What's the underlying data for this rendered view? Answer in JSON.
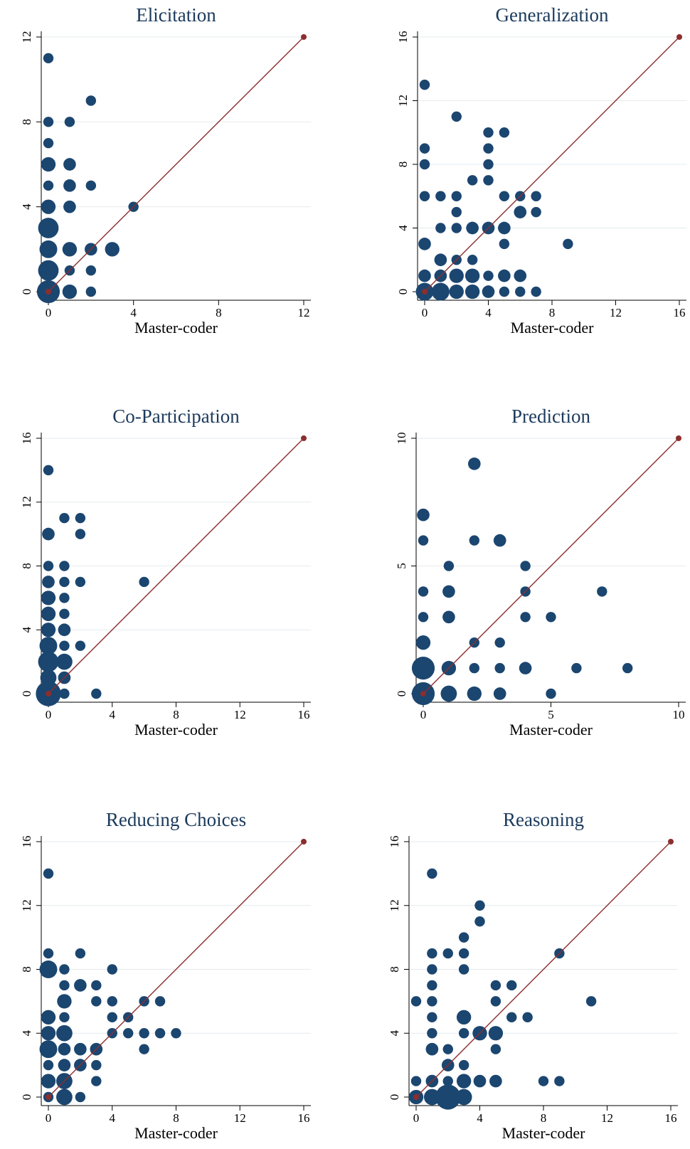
{
  "chart_data": [
    {
      "type": "scatter",
      "title": "Elicitation",
      "xlabel": "Master-coder",
      "ylabel": "",
      "xlim": [
        0,
        12
      ],
      "ylim": [
        0,
        12
      ],
      "xticks": [
        0,
        4,
        8,
        12
      ],
      "yticks": [
        0,
        4,
        8,
        12
      ],
      "grid": "horizontal",
      "reference_line": [
        [
          0,
          0
        ],
        [
          12,
          12
        ]
      ],
      "points": [
        {
          "x": 0,
          "y": 0,
          "w": 5
        },
        {
          "x": 0,
          "y": 1,
          "w": 4
        },
        {
          "x": 0,
          "y": 2,
          "w": 3
        },
        {
          "x": 0,
          "y": 3,
          "w": 4
        },
        {
          "x": 0,
          "y": 4,
          "w": 2
        },
        {
          "x": 0,
          "y": 5,
          "w": 1
        },
        {
          "x": 0,
          "y": 6,
          "w": 2
        },
        {
          "x": 0,
          "y": 7,
          "w": 1
        },
        {
          "x": 0,
          "y": 8,
          "w": 1
        },
        {
          "x": 0,
          "y": 11,
          "w": 1
        },
        {
          "x": 1,
          "y": 0,
          "w": 2
        },
        {
          "x": 1,
          "y": 1,
          "w": 1
        },
        {
          "x": 1,
          "y": 2,
          "w": 2
        },
        {
          "x": 1,
          "y": 4,
          "w": 1.5
        },
        {
          "x": 1,
          "y": 5,
          "w": 1.5
        },
        {
          "x": 1,
          "y": 6,
          "w": 1.5
        },
        {
          "x": 1,
          "y": 8,
          "w": 1
        },
        {
          "x": 2,
          "y": 0,
          "w": 1
        },
        {
          "x": 2,
          "y": 1,
          "w": 1
        },
        {
          "x": 2,
          "y": 2,
          "w": 1.5
        },
        {
          "x": 2,
          "y": 5,
          "w": 1
        },
        {
          "x": 2,
          "y": 9,
          "w": 1
        },
        {
          "x": 3,
          "y": 2,
          "w": 2
        },
        {
          "x": 4,
          "y": 4,
          "w": 1
        }
      ]
    },
    {
      "type": "scatter",
      "title": "Generalization",
      "xlabel": "Master-coder",
      "ylabel": "",
      "xlim": [
        0,
        16
      ],
      "ylim": [
        0,
        16
      ],
      "xticks": [
        0,
        4,
        8,
        12,
        16
      ],
      "yticks": [
        0,
        4,
        8,
        12,
        16
      ],
      "grid": "horizontal",
      "reference_line": [
        [
          0,
          0
        ],
        [
          16,
          16
        ]
      ],
      "points": [
        {
          "x": 0,
          "y": 0,
          "w": 3
        },
        {
          "x": 0,
          "y": 1,
          "w": 1.5
        },
        {
          "x": 0,
          "y": 3,
          "w": 1.5
        },
        {
          "x": 0,
          "y": 6,
          "w": 1
        },
        {
          "x": 0,
          "y": 8,
          "w": 1
        },
        {
          "x": 0,
          "y": 9,
          "w": 1
        },
        {
          "x": 0,
          "y": 13,
          "w": 1
        },
        {
          "x": 1,
          "y": 0,
          "w": 3
        },
        {
          "x": 1,
          "y": 1,
          "w": 1.5
        },
        {
          "x": 1,
          "y": 2,
          "w": 1.5
        },
        {
          "x": 1,
          "y": 4,
          "w": 1
        },
        {
          "x": 1,
          "y": 6,
          "w": 1
        },
        {
          "x": 2,
          "y": 0,
          "w": 2
        },
        {
          "x": 2,
          "y": 1,
          "w": 2
        },
        {
          "x": 2,
          "y": 2,
          "w": 1
        },
        {
          "x": 2,
          "y": 4,
          "w": 1
        },
        {
          "x": 2,
          "y": 5,
          "w": 1
        },
        {
          "x": 2,
          "y": 6,
          "w": 1
        },
        {
          "x": 2,
          "y": 11,
          "w": 1
        },
        {
          "x": 3,
          "y": 0,
          "w": 2
        },
        {
          "x": 3,
          "y": 1,
          "w": 2
        },
        {
          "x": 3,
          "y": 2,
          "w": 1
        },
        {
          "x": 3,
          "y": 4,
          "w": 1.5
        },
        {
          "x": 3,
          "y": 7,
          "w": 1
        },
        {
          "x": 4,
          "y": 0,
          "w": 1.5
        },
        {
          "x": 4,
          "y": 1,
          "w": 1
        },
        {
          "x": 4,
          "y": 4,
          "w": 1.5
        },
        {
          "x": 4,
          "y": 7,
          "w": 1
        },
        {
          "x": 4,
          "y": 8,
          "w": 1
        },
        {
          "x": 4,
          "y": 9,
          "w": 1
        },
        {
          "x": 4,
          "y": 10,
          "w": 1
        },
        {
          "x": 5,
          "y": 0,
          "w": 1
        },
        {
          "x": 5,
          "y": 1,
          "w": 1.5
        },
        {
          "x": 5,
          "y": 3,
          "w": 1
        },
        {
          "x": 5,
          "y": 4,
          "w": 1.5
        },
        {
          "x": 5,
          "y": 6,
          "w": 1
        },
        {
          "x": 5,
          "y": 10,
          "w": 1
        },
        {
          "x": 6,
          "y": 0,
          "w": 1
        },
        {
          "x": 6,
          "y": 1,
          "w": 1.5
        },
        {
          "x": 6,
          "y": 5,
          "w": 1.5
        },
        {
          "x": 6,
          "y": 6,
          "w": 1
        },
        {
          "x": 7,
          "y": 0,
          "w": 1
        },
        {
          "x": 7,
          "y": 5,
          "w": 1
        },
        {
          "x": 7,
          "y": 6,
          "w": 1
        },
        {
          "x": 9,
          "y": 3,
          "w": 1
        }
      ]
    },
    {
      "type": "scatter",
      "title": "Co-Participation",
      "xlabel": "Master-coder",
      "ylabel": "",
      "xlim": [
        0,
        16
      ],
      "ylim": [
        0,
        16
      ],
      "xticks": [
        0,
        4,
        8,
        12,
        16
      ],
      "yticks": [
        0,
        4,
        8,
        12,
        16
      ],
      "grid": "horizontal",
      "reference_line": [
        [
          0,
          0
        ],
        [
          16,
          16
        ]
      ],
      "points": [
        {
          "x": 0,
          "y": 0,
          "w": 6
        },
        {
          "x": 0,
          "y": 1,
          "w": 2.5
        },
        {
          "x": 0,
          "y": 2,
          "w": 4
        },
        {
          "x": 0,
          "y": 3,
          "w": 3
        },
        {
          "x": 0,
          "y": 4,
          "w": 2
        },
        {
          "x": 0,
          "y": 5,
          "w": 2
        },
        {
          "x": 0,
          "y": 6,
          "w": 2
        },
        {
          "x": 0,
          "y": 7,
          "w": 1.5
        },
        {
          "x": 0,
          "y": 8,
          "w": 1
        },
        {
          "x": 0,
          "y": 10,
          "w": 1.5
        },
        {
          "x": 0,
          "y": 14,
          "w": 1
        },
        {
          "x": 1,
          "y": 0,
          "w": 1
        },
        {
          "x": 1,
          "y": 1,
          "w": 1.5
        },
        {
          "x": 1,
          "y": 2,
          "w": 2.5
        },
        {
          "x": 1,
          "y": 3,
          "w": 1
        },
        {
          "x": 1,
          "y": 4,
          "w": 1.5
        },
        {
          "x": 1,
          "y": 5,
          "w": 1
        },
        {
          "x": 1,
          "y": 6,
          "w": 1
        },
        {
          "x": 1,
          "y": 7,
          "w": 1
        },
        {
          "x": 1,
          "y": 8,
          "w": 1
        },
        {
          "x": 1,
          "y": 11,
          "w": 1
        },
        {
          "x": 2,
          "y": 3,
          "w": 1
        },
        {
          "x": 2,
          "y": 7,
          "w": 1
        },
        {
          "x": 2,
          "y": 10,
          "w": 1
        },
        {
          "x": 2,
          "y": 11,
          "w": 1
        },
        {
          "x": 3,
          "y": 0,
          "w": 1
        },
        {
          "x": 6,
          "y": 7,
          "w": 1
        }
      ]
    },
    {
      "type": "scatter",
      "title": "Prediction",
      "xlabel": "Master-coder",
      "ylabel": "",
      "xlim": [
        0,
        10
      ],
      "ylim": [
        0,
        10
      ],
      "xticks": [
        0,
        5,
        10
      ],
      "yticks": [
        0,
        5,
        10
      ],
      "grid": "horizontal",
      "reference_line": [
        [
          0,
          0
        ],
        [
          10,
          10
        ]
      ],
      "points": [
        {
          "x": 0,
          "y": 0,
          "w": 5
        },
        {
          "x": 0,
          "y": 1,
          "w": 5
        },
        {
          "x": 0,
          "y": 2,
          "w": 2
        },
        {
          "x": 0,
          "y": 3,
          "w": 1
        },
        {
          "x": 0,
          "y": 4,
          "w": 1
        },
        {
          "x": 0,
          "y": 6,
          "w": 1
        },
        {
          "x": 0,
          "y": 7,
          "w": 1.5
        },
        {
          "x": 1,
          "y": 0,
          "w": 2.5
        },
        {
          "x": 1,
          "y": 1,
          "w": 2
        },
        {
          "x": 1,
          "y": 3,
          "w": 1.5
        },
        {
          "x": 1,
          "y": 4,
          "w": 1.5
        },
        {
          "x": 1,
          "y": 5,
          "w": 1
        },
        {
          "x": 2,
          "y": 0,
          "w": 2
        },
        {
          "x": 2,
          "y": 1,
          "w": 1
        },
        {
          "x": 2,
          "y": 2,
          "w": 1
        },
        {
          "x": 2,
          "y": 6,
          "w": 1
        },
        {
          "x": 2,
          "y": 9,
          "w": 1.5
        },
        {
          "x": 3,
          "y": 0,
          "w": 1.5
        },
        {
          "x": 3,
          "y": 1,
          "w": 1
        },
        {
          "x": 3,
          "y": 2,
          "w": 1
        },
        {
          "x": 3,
          "y": 6,
          "w": 1.5
        },
        {
          "x": 4,
          "y": 1,
          "w": 1.5
        },
        {
          "x": 4,
          "y": 3,
          "w": 1
        },
        {
          "x": 4,
          "y": 4,
          "w": 1
        },
        {
          "x": 4,
          "y": 5,
          "w": 1
        },
        {
          "x": 5,
          "y": 0,
          "w": 1
        },
        {
          "x": 5,
          "y": 3,
          "w": 1
        },
        {
          "x": 6,
          "y": 1,
          "w": 1
        },
        {
          "x": 7,
          "y": 4,
          "w": 1
        },
        {
          "x": 8,
          "y": 1,
          "w": 1
        }
      ]
    },
    {
      "type": "scatter",
      "title": "Reducing Choices",
      "xlabel": "Master-coder",
      "ylabel": "",
      "xlim": [
        0,
        16
      ],
      "ylim": [
        0,
        16
      ],
      "xticks": [
        0,
        4,
        8,
        12,
        16
      ],
      "yticks": [
        0,
        4,
        8,
        12,
        16
      ],
      "grid": "horizontal",
      "reference_line": [
        [
          0,
          0
        ],
        [
          16,
          16
        ]
      ],
      "points": [
        {
          "x": 0,
          "y": 0,
          "w": 1
        },
        {
          "x": 0,
          "y": 1,
          "w": 2
        },
        {
          "x": 0,
          "y": 2,
          "w": 1
        },
        {
          "x": 0,
          "y": 3,
          "w": 3
        },
        {
          "x": 0,
          "y": 4,
          "w": 2
        },
        {
          "x": 0,
          "y": 5,
          "w": 2
        },
        {
          "x": 0,
          "y": 8,
          "w": 3
        },
        {
          "x": 0,
          "y": 9,
          "w": 1
        },
        {
          "x": 0,
          "y": 14,
          "w": 1
        },
        {
          "x": 1,
          "y": 0,
          "w": 2.5
        },
        {
          "x": 1,
          "y": 1,
          "w": 2.5
        },
        {
          "x": 1,
          "y": 2,
          "w": 1.5
        },
        {
          "x": 1,
          "y": 3,
          "w": 1.5
        },
        {
          "x": 1,
          "y": 4,
          "w": 2.5
        },
        {
          "x": 1,
          "y": 5,
          "w": 1
        },
        {
          "x": 1,
          "y": 6,
          "w": 2
        },
        {
          "x": 1,
          "y": 7,
          "w": 1
        },
        {
          "x": 1,
          "y": 8,
          "w": 1
        },
        {
          "x": 2,
          "y": 0,
          "w": 1
        },
        {
          "x": 2,
          "y": 2,
          "w": 1.5
        },
        {
          "x": 2,
          "y": 3,
          "w": 1.5
        },
        {
          "x": 2,
          "y": 7,
          "w": 1.5
        },
        {
          "x": 2,
          "y": 9,
          "w": 1
        },
        {
          "x": 3,
          "y": 1,
          "w": 1
        },
        {
          "x": 3,
          "y": 2,
          "w": 1
        },
        {
          "x": 3,
          "y": 3,
          "w": 1.5
        },
        {
          "x": 3,
          "y": 6,
          "w": 1
        },
        {
          "x": 3,
          "y": 7,
          "w": 1
        },
        {
          "x": 4,
          "y": 4,
          "w": 1
        },
        {
          "x": 4,
          "y": 5,
          "w": 1
        },
        {
          "x": 4,
          "y": 6,
          "w": 1
        },
        {
          "x": 4,
          "y": 8,
          "w": 1
        },
        {
          "x": 5,
          "y": 4,
          "w": 1
        },
        {
          "x": 5,
          "y": 5,
          "w": 1
        },
        {
          "x": 6,
          "y": 3,
          "w": 1
        },
        {
          "x": 6,
          "y": 4,
          "w": 1
        },
        {
          "x": 6,
          "y": 6,
          "w": 1
        },
        {
          "x": 7,
          "y": 4,
          "w": 1
        },
        {
          "x": 7,
          "y": 6,
          "w": 1
        },
        {
          "x": 8,
          "y": 4,
          "w": 1
        }
      ]
    },
    {
      "type": "scatter",
      "title": "Reasoning",
      "xlabel": "Master-coder",
      "ylabel": "",
      "xlim": [
        0,
        16
      ],
      "ylim": [
        0,
        16
      ],
      "xticks": [
        0,
        4,
        8,
        12,
        16
      ],
      "yticks": [
        0,
        4,
        8,
        12,
        16
      ],
      "grid": "horizontal",
      "reference_line": [
        [
          0,
          0
        ],
        [
          16,
          16
        ]
      ],
      "points": [
        {
          "x": 0,
          "y": 0,
          "w": 2
        },
        {
          "x": 0,
          "y": 1,
          "w": 1
        },
        {
          "x": 0,
          "y": 6,
          "w": 1
        },
        {
          "x": 1,
          "y": 0,
          "w": 2.5
        },
        {
          "x": 1,
          "y": 1,
          "w": 1.5
        },
        {
          "x": 1,
          "y": 3,
          "w": 1.5
        },
        {
          "x": 1,
          "y": 4,
          "w": 1
        },
        {
          "x": 1,
          "y": 5,
          "w": 1
        },
        {
          "x": 1,
          "y": 6,
          "w": 1
        },
        {
          "x": 1,
          "y": 7,
          "w": 1
        },
        {
          "x": 1,
          "y": 8,
          "w": 1
        },
        {
          "x": 1,
          "y": 9,
          "w": 1
        },
        {
          "x": 1,
          "y": 14,
          "w": 1
        },
        {
          "x": 2,
          "y": 0,
          "w": 6
        },
        {
          "x": 2,
          "y": 1,
          "w": 1
        },
        {
          "x": 2,
          "y": 2,
          "w": 1.5
        },
        {
          "x": 2,
          "y": 3,
          "w": 1
        },
        {
          "x": 2,
          "y": 9,
          "w": 1
        },
        {
          "x": 3,
          "y": 0,
          "w": 2.5
        },
        {
          "x": 3,
          "y": 1,
          "w": 2
        },
        {
          "x": 3,
          "y": 2,
          "w": 1
        },
        {
          "x": 3,
          "y": 4,
          "w": 1
        },
        {
          "x": 3,
          "y": 5,
          "w": 2
        },
        {
          "x": 3,
          "y": 8,
          "w": 1
        },
        {
          "x": 3,
          "y": 9,
          "w": 1
        },
        {
          "x": 3,
          "y": 10,
          "w": 1
        },
        {
          "x": 4,
          "y": 1,
          "w": 1.5
        },
        {
          "x": 4,
          "y": 4,
          "w": 2
        },
        {
          "x": 4,
          "y": 11,
          "w": 1
        },
        {
          "x": 4,
          "y": 12,
          "w": 1
        },
        {
          "x": 5,
          "y": 1,
          "w": 1.5
        },
        {
          "x": 5,
          "y": 3,
          "w": 1
        },
        {
          "x": 5,
          "y": 4,
          "w": 2
        },
        {
          "x": 5,
          "y": 6,
          "w": 1
        },
        {
          "x": 5,
          "y": 7,
          "w": 1
        },
        {
          "x": 6,
          "y": 5,
          "w": 1
        },
        {
          "x": 6,
          "y": 7,
          "w": 1
        },
        {
          "x": 7,
          "y": 5,
          "w": 1
        },
        {
          "x": 8,
          "y": 1,
          "w": 1
        },
        {
          "x": 9,
          "y": 1,
          "w": 1
        },
        {
          "x": 9,
          "y": 9,
          "w": 1
        },
        {
          "x": 11,
          "y": 6,
          "w": 1
        }
      ]
    }
  ],
  "colors": {
    "marker": "#1b4670",
    "reference_line": "#8b2e2e",
    "title": "#1b3a5c",
    "grid": "#e6ebef"
  }
}
